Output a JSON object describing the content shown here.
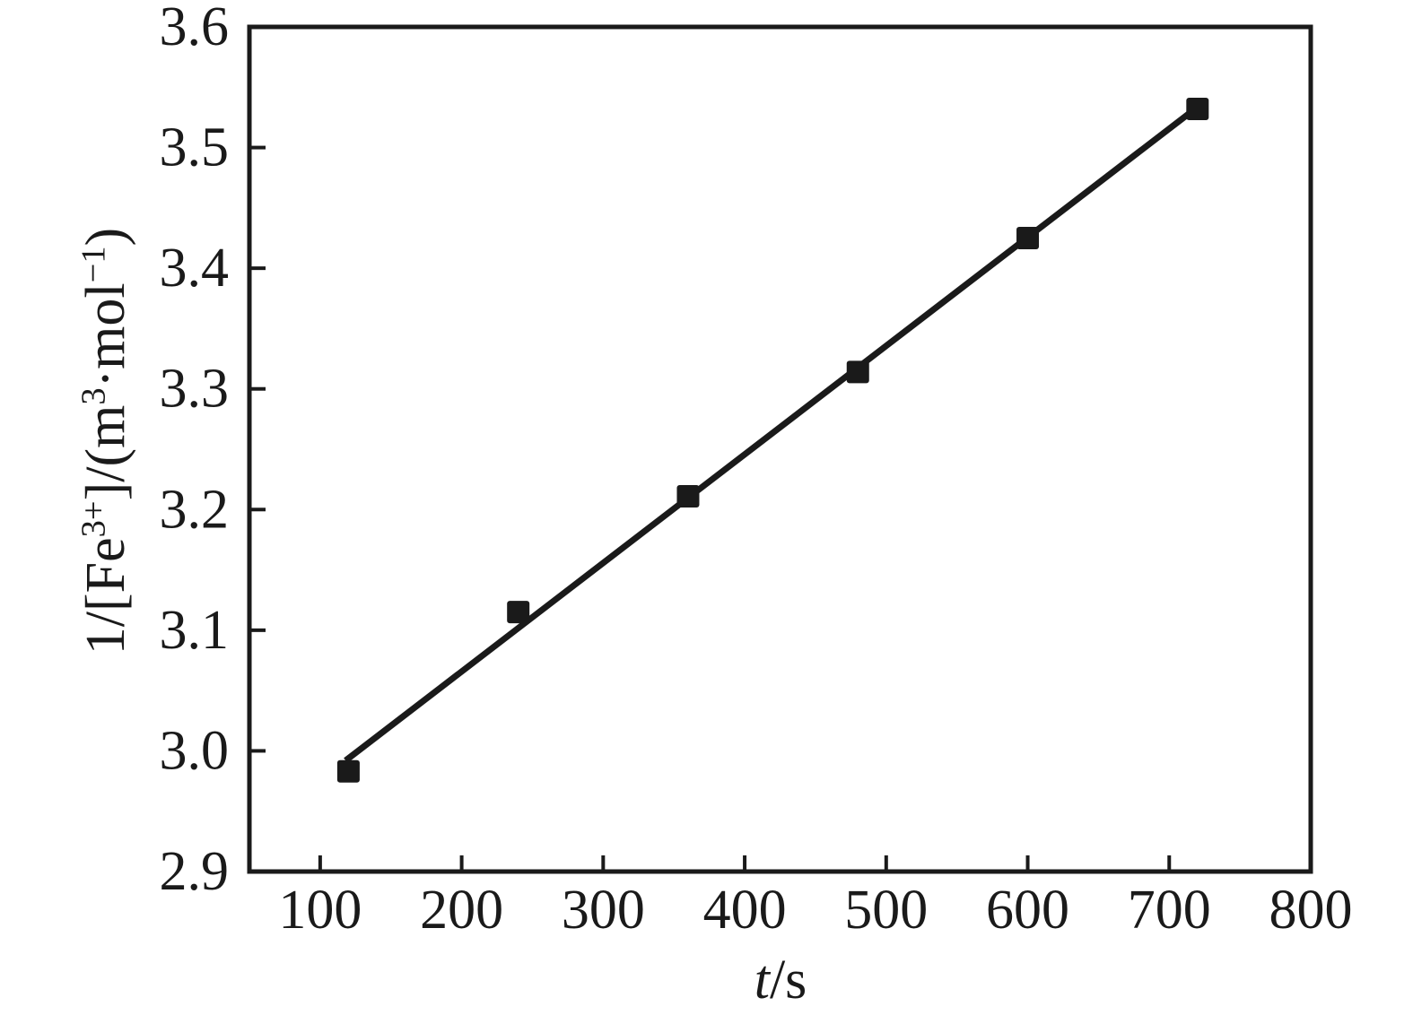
{
  "figure": {
    "background": "#ffffff",
    "ink_color": "#1a1a1a"
  },
  "chart_data": {
    "type": "scatter",
    "title": "",
    "xlabel": "t/s",
    "ylabel": "1/[Fe3+]/(m3·mol−1)",
    "xlabel_segments": [
      {
        "text": "t",
        "italic": true
      },
      {
        "text": "/s"
      }
    ],
    "ylabel_segments": [
      {
        "text": "1/[Fe"
      },
      {
        "text": "3+",
        "sup": true
      },
      {
        "text": "]/(m"
      },
      {
        "text": "3",
        "sup": true
      },
      {
        "text": "·mol"
      },
      {
        "text": "−1",
        "sup": true
      },
      {
        "text": ")"
      }
    ],
    "xlim": [
      50,
      800
    ],
    "ylim": [
      2.9,
      3.6
    ],
    "grid": false,
    "legend": null,
    "marker": "filled-square",
    "xticks": [
      {
        "value": 100,
        "label": "100"
      },
      {
        "value": 200,
        "label": "200"
      },
      {
        "value": 300,
        "label": "300"
      },
      {
        "value": 400,
        "label": "400"
      },
      {
        "value": 500,
        "label": "500"
      },
      {
        "value": 600,
        "label": "600"
      },
      {
        "value": 700,
        "label": "700"
      },
      {
        "value": 800,
        "label": "800"
      }
    ],
    "yticks": [
      {
        "value": 2.9,
        "label": "2.9"
      },
      {
        "value": 3.0,
        "label": "3.0"
      },
      {
        "value": 3.1,
        "label": "3.1"
      },
      {
        "value": 3.2,
        "label": "3.2"
      },
      {
        "value": 3.3,
        "label": "3.3"
      },
      {
        "value": 3.4,
        "label": "3.4"
      },
      {
        "value": 3.5,
        "label": "3.5"
      },
      {
        "value": 3.6,
        "label": "3.6"
      }
    ],
    "series": [
      {
        "name": "measured-points",
        "x": [
          120,
          240,
          360,
          480,
          600,
          720
        ],
        "y": [
          2.983,
          3.115,
          3.211,
          3.314,
          3.425,
          3.532
        ]
      }
    ],
    "fit_line": {
      "x1": 118,
      "y1": 2.992,
      "x2": 716,
      "y2": 3.53
    }
  }
}
